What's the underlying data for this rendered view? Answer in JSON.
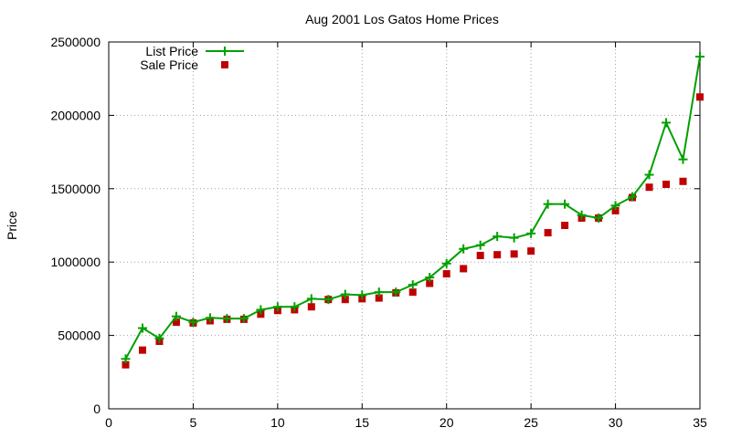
{
  "chart_data": {
    "type": "line",
    "title": "Aug 2001 Los Gatos Home Prices",
    "xlabel": "",
    "ylabel": "Price",
    "xlim": [
      0,
      35
    ],
    "ylim": [
      0,
      2500000
    ],
    "xticks": [
      0,
      5,
      10,
      15,
      20,
      25,
      30,
      35
    ],
    "yticks": [
      0,
      500000,
      1000000,
      1500000,
      2000000,
      2500000
    ],
    "xtick_labels": [
      "0",
      "5",
      "10",
      "15",
      "20",
      "25",
      "30",
      "35"
    ],
    "ytick_labels": [
      "0",
      "500000",
      "1000000",
      "1500000",
      "2000000",
      "2500000"
    ],
    "grid": true,
    "legend_position": "top-left",
    "x": [
      1,
      2,
      3,
      4,
      5,
      6,
      7,
      8,
      9,
      10,
      11,
      12,
      13,
      14,
      15,
      16,
      17,
      18,
      19,
      20,
      21,
      22,
      23,
      24,
      25,
      26,
      27,
      28,
      29,
      30,
      31,
      32,
      33,
      34,
      35
    ],
    "series": [
      {
        "name": "List Price",
        "style": "lines-points",
        "marker": "plus",
        "color": "#00a000",
        "values": [
          340000,
          550000,
          480000,
          630000,
          590000,
          620000,
          615000,
          615000,
          675000,
          695000,
          695000,
          750000,
          745000,
          780000,
          775000,
          795000,
          795000,
          845000,
          895000,
          990000,
          1090000,
          1115000,
          1175000,
          1165000,
          1195000,
          1395000,
          1395000,
          1320000,
          1300000,
          1385000,
          1445000,
          1595000,
          1950000,
          1700000,
          2400000
        ]
      },
      {
        "name": "Sale Price",
        "style": "points",
        "marker": "square",
        "color": "#c00000",
        "values": [
          300000,
          400000,
          460000,
          590000,
          585000,
          600000,
          610000,
          610000,
          645000,
          670000,
          675000,
          695000,
          745000,
          745000,
          750000,
          755000,
          790000,
          795000,
          855000,
          920000,
          955000,
          1045000,
          1050000,
          1055000,
          1075000,
          1200000,
          1250000,
          1300000,
          1300000,
          1350000,
          1440000,
          1510000,
          1530000,
          1550000,
          2125000
        ]
      }
    ]
  }
}
